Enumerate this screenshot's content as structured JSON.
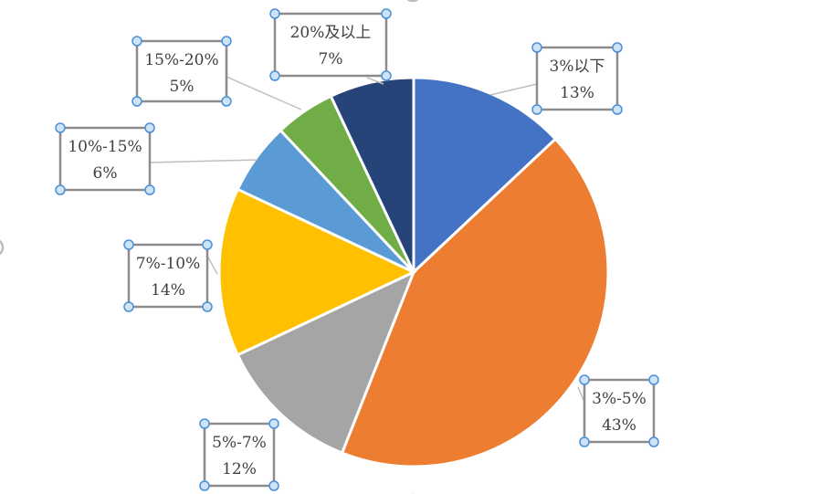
{
  "chart_data": {
    "type": "pie",
    "start_angle_deg": 0,
    "direction": "clockwise",
    "slices": [
      {
        "label": "3%以下",
        "value": 13,
        "pct_label": "13%",
        "color": "#4472C4"
      },
      {
        "label": "3%-5%",
        "value": 43,
        "pct_label": "43%",
        "color": "#ED7D31"
      },
      {
        "label": "5%-7%",
        "value": 12,
        "pct_label": "12%",
        "color": "#A5A5A5"
      },
      {
        "label": "7%-10%",
        "value": 14,
        "pct_label": "14%",
        "color": "#FFC000"
      },
      {
        "label": "10%-15%",
        "value": 6,
        "pct_label": "6%",
        "color": "#5B9BD5"
      },
      {
        "label": "15%-20%",
        "value": 5,
        "pct_label": "5%",
        "color": "#70AD47"
      },
      {
        "label": "20%及以上",
        "value": 7,
        "pct_label": "7%",
        "color": "#264478"
      }
    ]
  }
}
